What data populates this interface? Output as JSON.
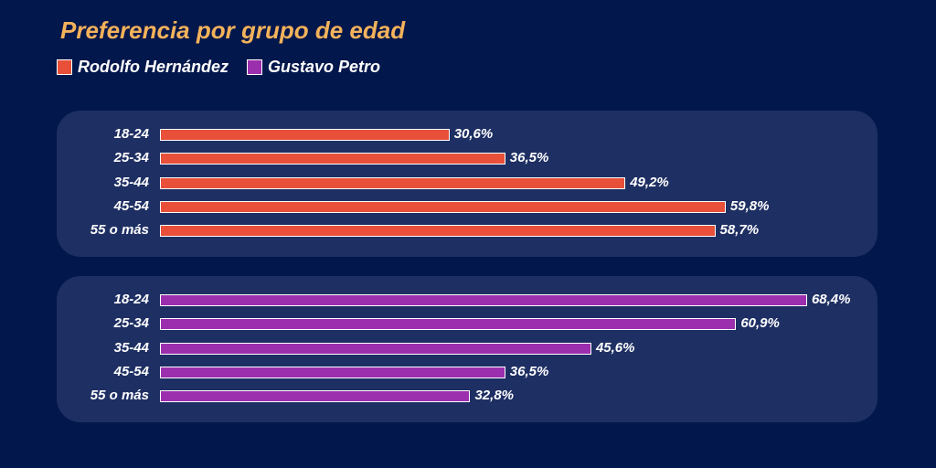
{
  "colors": {
    "background": "#02174b",
    "panel": "#1e2f63",
    "title": "#f4b25b",
    "text": "#ffffff"
  },
  "chart_data": {
    "type": "bar",
    "orientation": "horizontal",
    "title": "Preferencia por grupo de edad",
    "categories": [
      "18-24",
      "25-34",
      "35-44",
      "45-54",
      "55 o más"
    ],
    "legend_position": "top-left",
    "series": [
      {
        "name": "Rodolfo Hernández",
        "color": "#e8503a",
        "values": [
          30.6,
          36.5,
          49.2,
          59.8,
          58.7
        ],
        "labels": [
          "30,6%",
          "36,5%",
          "49,2%",
          "59,8%",
          "58,7%"
        ]
      },
      {
        "name": "Gustavo Petro",
        "color": "#9b2fae",
        "values": [
          68.4,
          60.9,
          45.6,
          36.5,
          32.8
        ],
        "labels": [
          "68,4%",
          "60,9%",
          "45,6%",
          "36,5%",
          "32,8%"
        ]
      }
    ],
    "xlim": [
      0,
      100
    ],
    "grid": false
  }
}
